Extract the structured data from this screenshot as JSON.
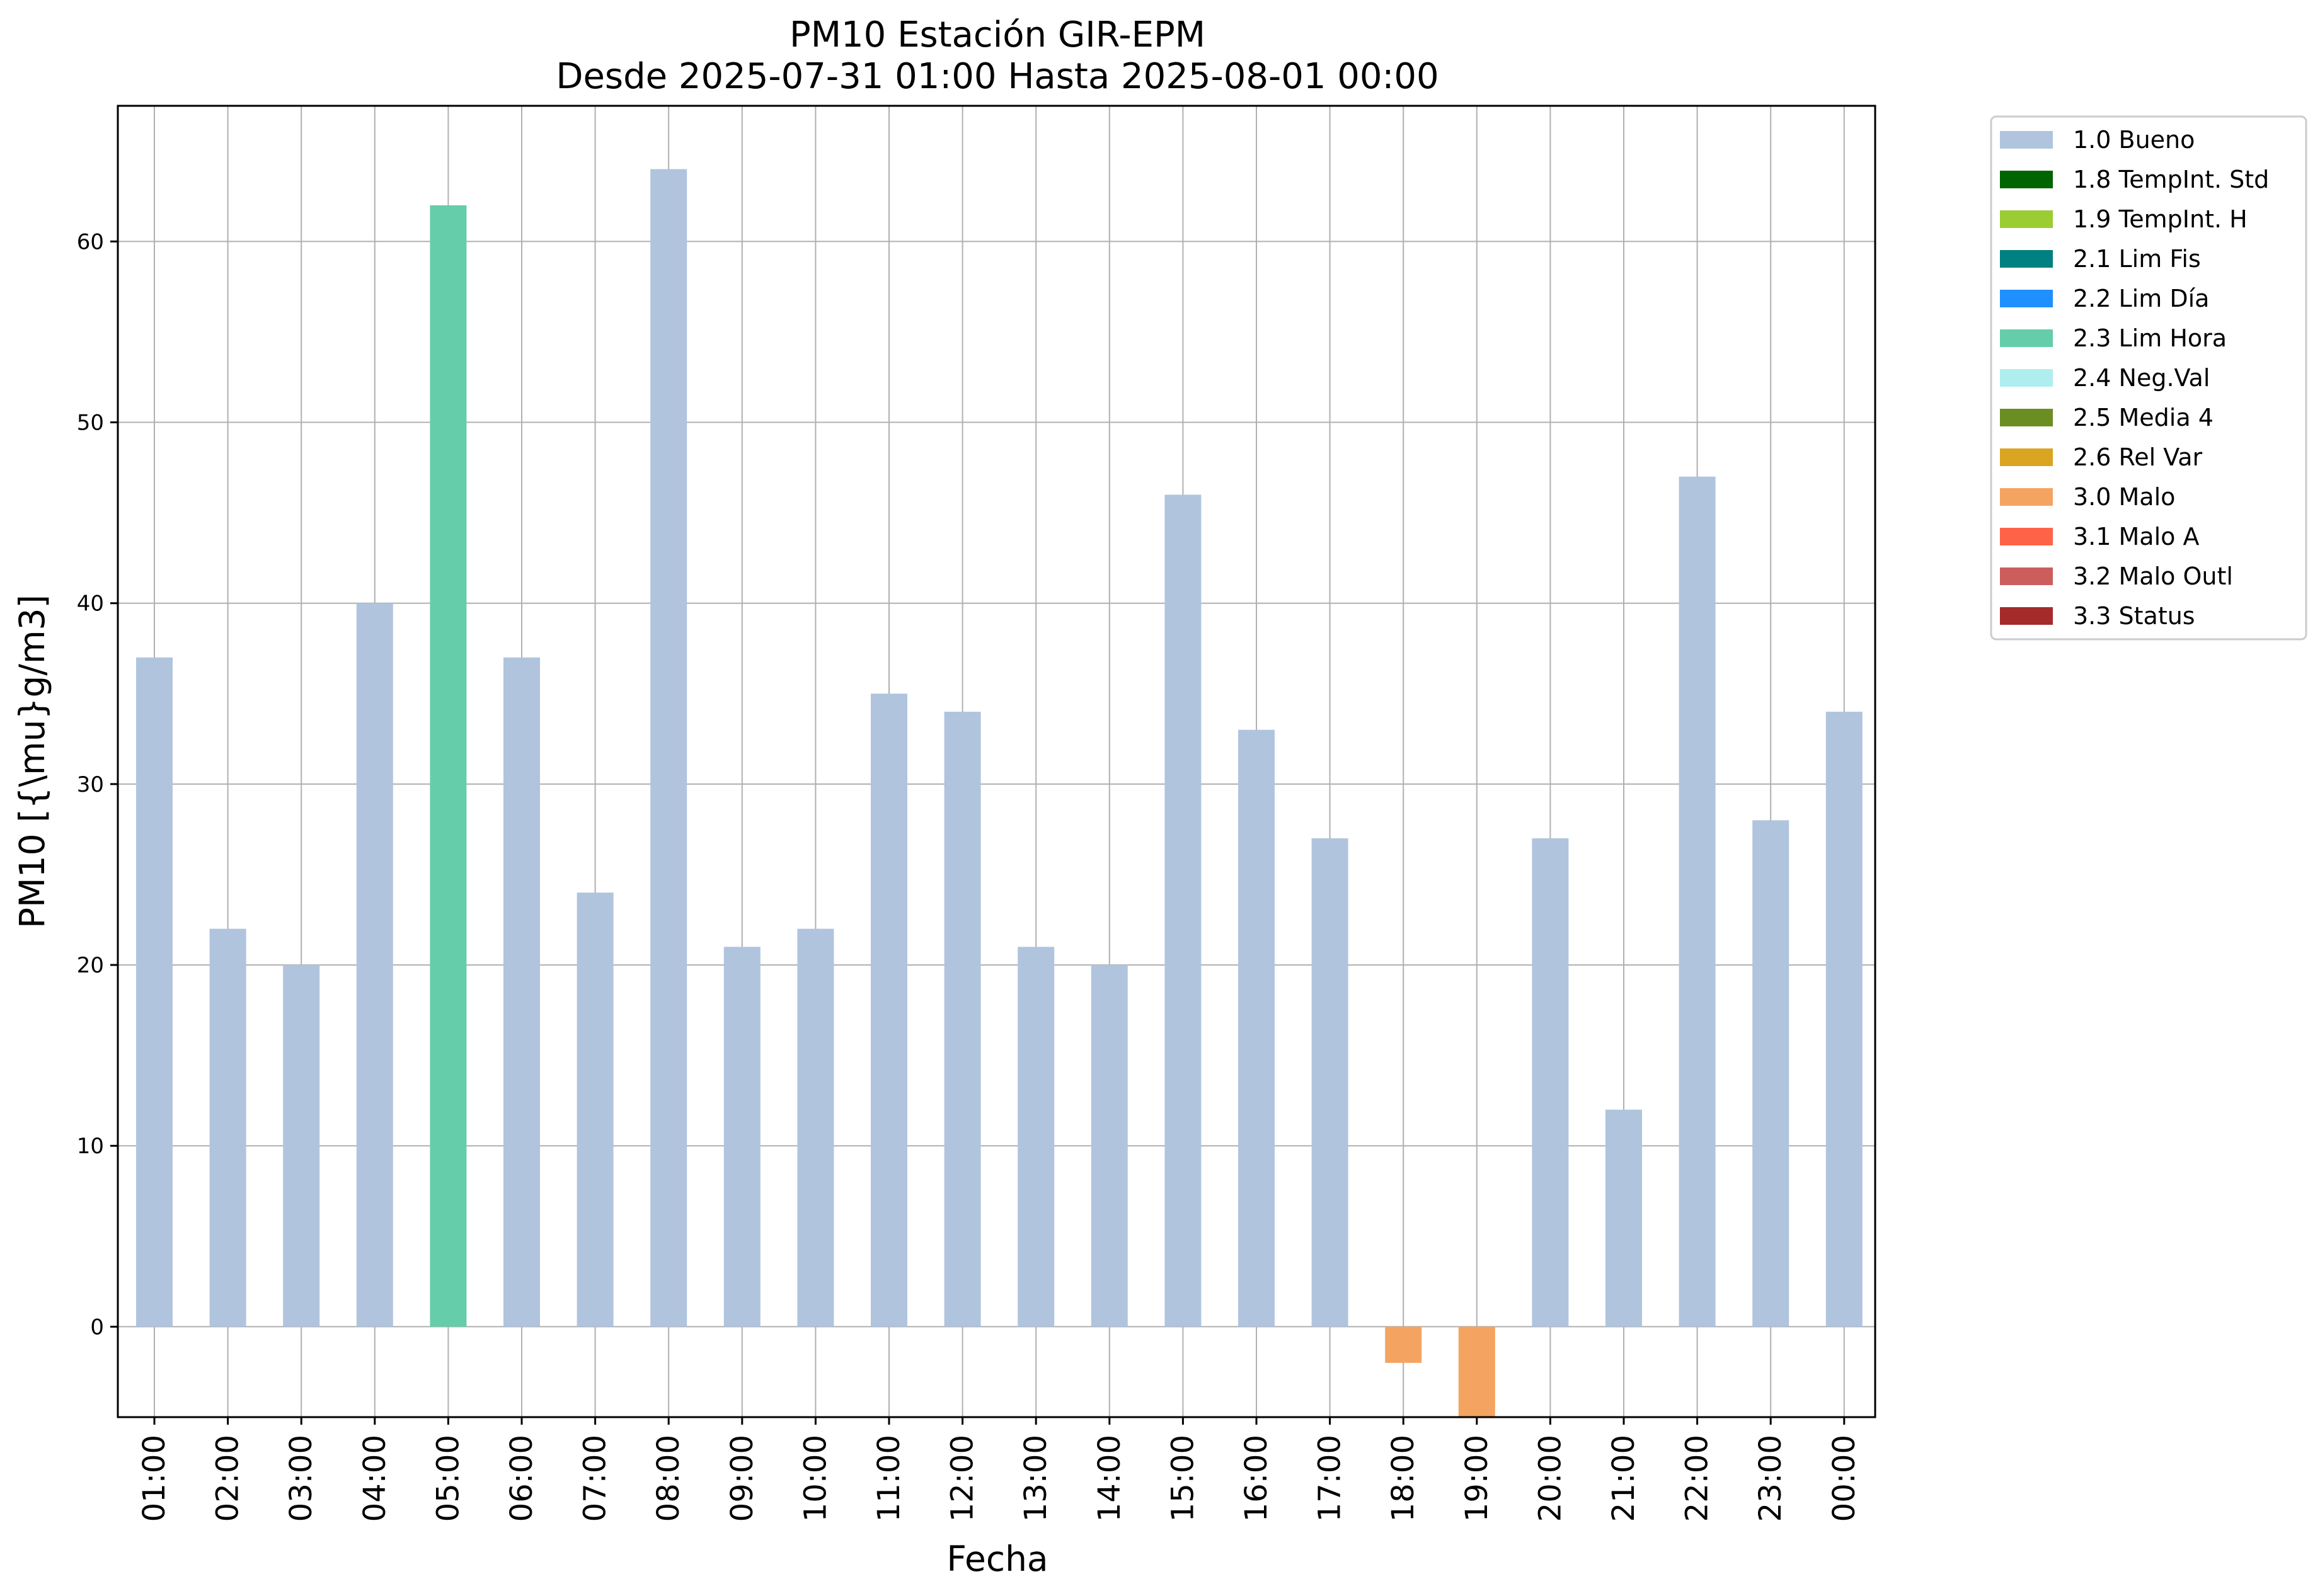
{
  "chart_data": {
    "type": "bar",
    "title": "PM10 Estación GIR-EPM",
    "subtitle": "Desde 2025-07-31 01:00 Hasta 2025-08-01 00:00",
    "xlabel": "Fecha",
    "ylabel": "PM10 [{\\mu}g/m3]",
    "ylim": [
      -5,
      67.5
    ],
    "yticks": [
      "0",
      "10",
      "20",
      "30",
      "40",
      "50",
      "60"
    ],
    "grid": true,
    "legend_placement": "outside top-right",
    "categories": [
      "01:00",
      "02:00",
      "03:00",
      "04:00",
      "05:00",
      "06:00",
      "07:00",
      "08:00",
      "09:00",
      "10:00",
      "11:00",
      "12:00",
      "13:00",
      "14:00",
      "15:00",
      "16:00",
      "17:00",
      "18:00",
      "19:00",
      "20:00",
      "21:00",
      "22:00",
      "23:00",
      "00:00"
    ],
    "values": [
      37,
      22,
      20,
      40,
      62,
      37,
      24,
      64,
      21,
      22,
      35,
      34,
      21,
      20,
      46,
      33,
      27,
      -2,
      -5,
      27,
      12,
      47,
      28,
      34
    ],
    "flags": [
      "1.0 Bueno",
      "1.0 Bueno",
      "1.0 Bueno",
      "1.0 Bueno",
      "2.3 Lim Hora",
      "1.0 Bueno",
      "1.0 Bueno",
      "1.0 Bueno",
      "1.0 Bueno",
      "1.0 Bueno",
      "1.0 Bueno",
      "1.0 Bueno",
      "1.0 Bueno",
      "1.0 Bueno",
      "1.0 Bueno",
      "1.0 Bueno",
      "1.0 Bueno",
      "3.0 Malo",
      "3.0 Malo",
      "1.0 Bueno",
      "1.0 Bueno",
      "1.0 Bueno",
      "1.0 Bueno",
      "1.0 Bueno"
    ],
    "legend": [
      {
        "label": "1.0 Bueno",
        "color": "#b0c4de"
      },
      {
        "label": "1.8 TempInt. Std",
        "color": "#006400"
      },
      {
        "label": "1.9 TempInt. H",
        "color": "#9acd32"
      },
      {
        "label": "2.1 Lim Fis",
        "color": "#008080"
      },
      {
        "label": "2.2 Lim Día",
        "color": "#1e90ff"
      },
      {
        "label": "2.3 Lim Hora",
        "color": "#66cdaa"
      },
      {
        "label": "2.4 Neg.Val",
        "color": "#afeeee"
      },
      {
        "label": "2.5 Media 4",
        "color": "#6b8e23"
      },
      {
        "label": "2.6 Rel Var",
        "color": "#daa520"
      },
      {
        "label": "3.0 Malo",
        "color": "#f4a460"
      },
      {
        "label": "3.1 Malo A",
        "color": "#ff6347"
      },
      {
        "label": "3.2 Malo Outl",
        "color": "#cd5c5c"
      },
      {
        "label": "3.3 Status",
        "color": "#a52a2a"
      }
    ]
  }
}
